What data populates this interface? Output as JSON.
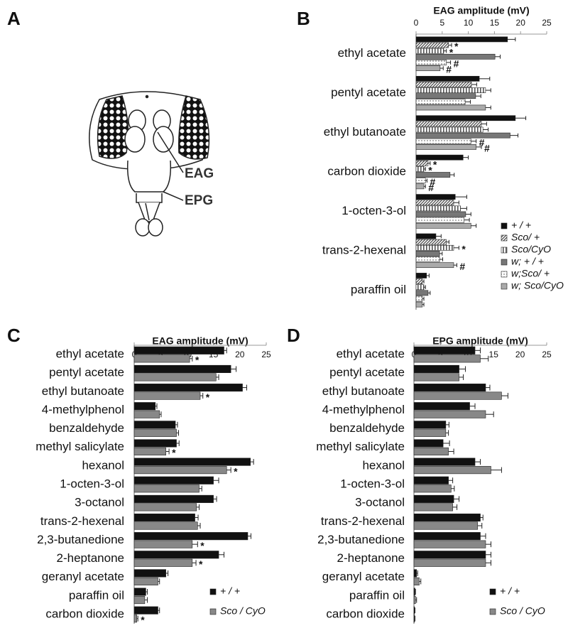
{
  "panels": [
    "A",
    "B",
    "C",
    "D"
  ],
  "diagram": {
    "labels": [
      "EAG",
      "EPG"
    ]
  },
  "chart_data": [
    {
      "type": "bar",
      "orientation": "horizontal",
      "xlabel": "EAG amplitude (mV)",
      "xlim": [
        0,
        25
      ],
      "xticks": [
        0,
        5,
        10,
        15,
        20,
        25
      ],
      "legend": "lower right",
      "categories": [
        "ethyl acetate",
        "pentyl acetate",
        "ethyl butanoate",
        "carbon dioxide",
        "1-octen-3-ol",
        "trans-2-hexenal",
        "paraffin oil"
      ],
      "series": [
        {
          "name": "+ / +",
          "color": "#111111",
          "hatch": null,
          "values": [
            17.5,
            12.1,
            19,
            9,
            7.5,
            3.8,
            2
          ],
          "errors": [
            1.5,
            2,
            2,
            1,
            2.2,
            1,
            0.5
          ]
        },
        {
          "name": "Sco/ +",
          "color": "#444444",
          "hatch": "diagonal",
          "values": [
            6.2,
            10.6,
            12.5,
            2.3,
            7.2,
            5.8,
            1.2
          ],
          "errors": [
            0.6,
            1,
            1,
            0.4,
            1,
            0.5,
            0.3
          ],
          "annotations": [
            "*",
            null,
            null,
            "*",
            null,
            null,
            null
          ]
        },
        {
          "name": "Sco/CyO",
          "color": "#555555",
          "hatch": "vertical",
          "values": [
            5.3,
            13.3,
            12.8,
            1.5,
            8.5,
            7.2,
            1.5
          ],
          "errors": [
            0.5,
            1,
            1,
            0.3,
            1.2,
            1,
            0.3
          ],
          "annotations": [
            "*",
            null,
            null,
            "*",
            null,
            "*",
            null
          ]
        },
        {
          "name": "w; + / +",
          "color": "#777777",
          "hatch": null,
          "values": [
            15.1,
            11.4,
            18,
            6.5,
            9.5,
            4.5,
            2.3
          ],
          "errors": [
            1,
            1,
            1.5,
            0.8,
            1,
            0.5,
            0.4
          ]
        },
        {
          "name": "w;Sco/ +",
          "color": "#777777",
          "hatch": "dots",
          "values": [
            5.8,
            9.4,
            10.5,
            1.8,
            9.2,
            4.5,
            1.2
          ],
          "errors": [
            0.8,
            1,
            1,
            0.3,
            1,
            0.6,
            0.3
          ],
          "annotations": [
            "#",
            null,
            "#",
            "#",
            null,
            null,
            null
          ]
        },
        {
          "name": "w; Sco/CyO",
          "color": "#aaaaaa",
          "hatch": null,
          "values": [
            4.6,
            13.3,
            11.5,
            1.5,
            10.5,
            7.2,
            1.2
          ],
          "errors": [
            0.6,
            1,
            1,
            0.3,
            1,
            0.6,
            0.3
          ],
          "annotations": [
            "#",
            null,
            "#",
            "#",
            null,
            "#",
            null
          ]
        }
      ]
    },
    {
      "type": "bar",
      "orientation": "horizontal",
      "xlabel": "EAG amplitude (mV)",
      "xlim": [
        0,
        25
      ],
      "xticks": [
        0,
        5,
        10,
        15,
        20,
        25
      ],
      "legend": "lower right",
      "categories": [
        "ethyl acetate",
        "pentyl acetate",
        "ethyl butanoate",
        "4-methylphenol",
        "benzaldehyde",
        "methyl salicylate",
        "hexanol",
        "1-octen-3-ol",
        "3-octanol",
        "trans-2-hexenal",
        "2,3-butanedione",
        "2-heptanone",
        "geranyl acetate",
        "paraffin oil",
        "carbon dioxide"
      ],
      "series": [
        {
          "name": "+ / +",
          "color": "#111111",
          "hatch": null,
          "values": [
            17,
            18.3,
            20.5,
            4,
            7.8,
            8,
            22,
            15,
            15,
            11.5,
            21.5,
            16,
            6,
            2.2,
            4.5
          ],
          "errors": [
            0.5,
            1,
            0.8,
            0.3,
            0.4,
            0.5,
            0.6,
            1,
            0.6,
            0.6,
            0.6,
            1,
            0.4,
            0.3,
            0.3
          ]
        },
        {
          "name": "Sco / CyO",
          "color": "#888888",
          "hatch": null,
          "values": [
            10.5,
            15.5,
            12.5,
            4.8,
            8,
            6,
            17.5,
            12.3,
            11.8,
            12,
            11,
            11,
            4.5,
            2,
            0.5
          ],
          "errors": [
            0.5,
            0.5,
            0.5,
            0.3,
            0.4,
            0.6,
            0.8,
            0.5,
            0.5,
            0.5,
            1,
            0.7,
            0.3,
            0.5,
            0.2
          ],
          "annotations": [
            "*",
            null,
            "*",
            null,
            null,
            "*",
            "*",
            null,
            null,
            null,
            "*",
            "*",
            null,
            null,
            "*"
          ]
        }
      ]
    },
    {
      "type": "bar",
      "orientation": "horizontal",
      "xlabel": "EPG amplitude (mV)",
      "xlim": [
        0,
        25
      ],
      "xticks": [
        0,
        5,
        10,
        15,
        20,
        25
      ],
      "legend": "lower right",
      "categories": [
        "ethyl acetate",
        "pentyl acetate",
        "ethyl butanoate",
        "4-methylphenol",
        "benzaldehyde",
        "methyl salicylate",
        "hexanol",
        "1-octen-3-ol",
        "3-octanol",
        "trans-2-hexenal",
        "2,3-butanedione",
        "2-heptanone",
        "geranyl acetate",
        "paraffin oil",
        "carbon dioxide"
      ],
      "series": [
        {
          "name": "+ / +",
          "color": "#111111",
          "hatch": null,
          "values": [
            11.5,
            8.5,
            13.5,
            10.5,
            6,
            5.5,
            11.5,
            6.5,
            7.5,
            12.5,
            12.5,
            13.5,
            0.5,
            0.2,
            0.1
          ],
          "errors": [
            1,
            1.2,
            0.8,
            1,
            0.6,
            1.2,
            1,
            0.8,
            1,
            0.5,
            1,
            1,
            0.2,
            0.1,
            0.1
          ]
        },
        {
          "name": "Sco / CyO",
          "color": "#888888",
          "hatch": null,
          "values": [
            12.5,
            8.5,
            16.5,
            13.5,
            6,
            6.5,
            14.5,
            7,
            7.3,
            12,
            13.5,
            13.5,
            1,
            0.3,
            0.1
          ],
          "errors": [
            1.5,
            0.8,
            1.2,
            1.5,
            0.5,
            1,
            2,
            0.6,
            0.8,
            0.8,
            1,
            1,
            0.3,
            0.2,
            0.1
          ]
        }
      ]
    }
  ]
}
